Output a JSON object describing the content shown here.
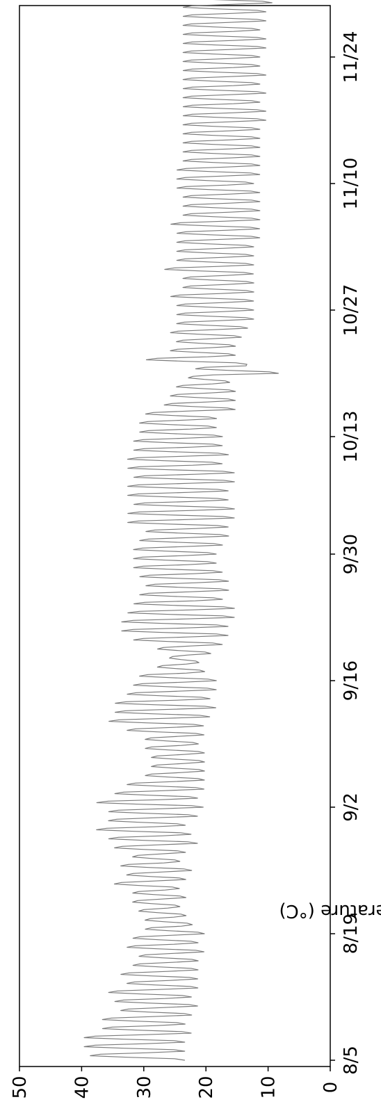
{
  "chart_data": {
    "type": "line",
    "orientation": "rotated-90",
    "title": "",
    "xlabel": "",
    "ylabel": "Air temperature (°C)",
    "x_tick_labels": [
      "8/5",
      "8/19",
      "9/2",
      "9/16",
      "9/30",
      "10/13",
      "10/27",
      "11/10",
      "11/24"
    ],
    "x_range": [
      "8/5",
      "12/1"
    ],
    "y_ticks": [
      0,
      10,
      20,
      30,
      40,
      50
    ],
    "ylim": [
      0,
      50
    ],
    "grid": false,
    "legend": "none",
    "series_color": "#7a7a7a",
    "series": [
      {
        "resolution": "daily min/max (approximate readings of the hourly trace)",
        "start_date": "8/5",
        "daily_min": [
          23,
          23,
          23,
          22,
          23,
          22,
          21,
          22,
          21,
          21,
          21,
          21,
          20,
          21,
          20,
          22,
          23,
          24,
          23,
          24,
          23,
          22,
          24,
          23,
          21,
          22,
          23,
          21,
          20,
          21,
          20,
          20,
          20,
          20,
          20,
          21,
          20,
          20,
          19,
          18,
          19,
          18,
          18,
          20,
          21,
          19,
          17,
          16,
          16,
          15,
          15,
          17,
          16,
          16,
          17,
          18,
          18,
          17,
          16,
          16,
          15,
          15,
          16,
          16,
          15,
          15,
          17,
          16,
          17,
          17,
          18,
          18,
          15,
          15,
          15,
          16,
          8,
          13,
          15,
          15,
          14,
          13,
          12,
          12,
          12,
          12,
          12,
          12,
          12,
          12,
          12,
          11,
          11,
          11,
          11,
          11,
          11,
          12,
          11,
          11,
          11,
          11,
          11,
          11,
          10,
          10,
          11,
          10,
          11,
          10,
          11,
          11,
          10,
          10,
          11,
          10,
          10,
          9,
          10,
          9,
          9,
          10
        ],
        "daily_max": [
          39,
          40,
          40,
          37,
          37,
          34,
          35,
          36,
          33,
          34,
          32,
          31,
          33,
          32,
          30,
          30,
          31,
          32,
          32,
          35,
          33,
          34,
          32,
          35,
          36,
          38,
          36,
          36,
          38,
          35,
          33,
          30,
          29,
          29,
          30,
          30,
          33,
          36,
          35,
          35,
          33,
          32,
          31,
          28,
          26,
          28,
          32,
          34,
          34,
          33,
          32,
          31,
          30,
          31,
          32,
          32,
          32,
          31,
          30,
          33,
          33,
          32,
          33,
          33,
          32,
          33,
          33,
          32,
          32,
          31,
          31,
          30,
          27,
          26,
          25,
          23,
          22,
          30,
          26,
          25,
          26,
          25,
          25,
          25,
          26,
          24,
          24,
          27,
          25,
          25,
          25,
          25,
          26,
          24,
          24,
          24,
          25,
          25,
          25,
          24,
          24,
          24,
          24,
          24,
          24,
          24,
          24,
          24,
          24,
          24,
          24,
          24,
          24,
          24,
          24,
          24,
          24,
          24,
          24,
          24,
          23,
          23
        ]
      }
    ]
  }
}
